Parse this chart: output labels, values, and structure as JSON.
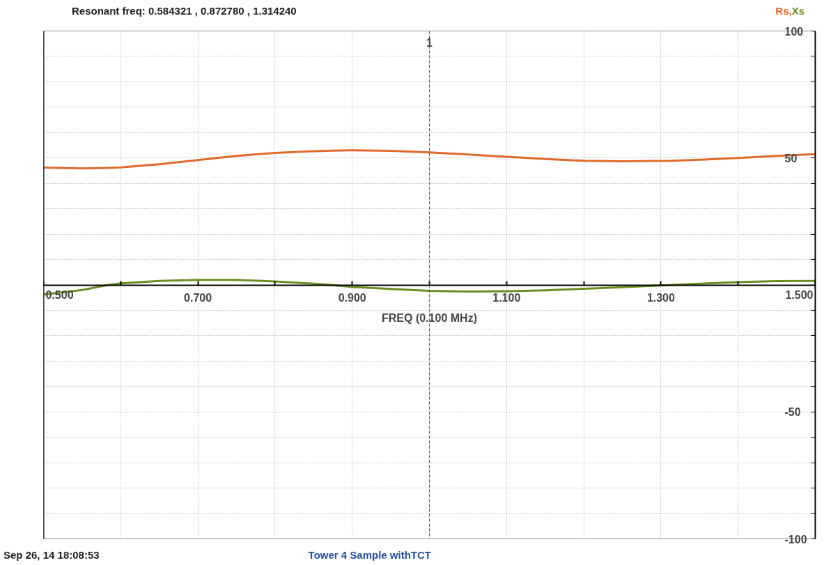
{
  "chart_data": {
    "type": "line",
    "title": "Resonant freq:  0.584321 , 0.872780 , 1.314240",
    "xlabel": "FREQ (0.100 MHz)",
    "x": [
      0.5,
      0.55,
      0.584,
      0.6,
      0.65,
      0.7,
      0.75,
      0.8,
      0.85,
      0.873,
      0.9,
      0.95,
      1.0,
      1.05,
      1.1,
      1.15,
      1.2,
      1.25,
      1.314,
      1.35,
      1.4,
      1.45,
      1.5
    ],
    "series": [
      {
        "name": "Rs,",
        "color": "#e06a2c",
        "values": [
          46.2,
          45.9,
          46.1,
          46.3,
          47.5,
          49.2,
          50.8,
          52.0,
          52.7,
          52.9,
          53.0,
          52.8,
          52.2,
          51.4,
          50.5,
          49.6,
          48.9,
          48.7,
          48.9,
          49.3,
          50.0,
          50.8,
          51.5
        ]
      },
      {
        "name": "Xs",
        "color": "#6b8e23",
        "values": [
          -3.8,
          -2.0,
          0,
          0.6,
          1.6,
          2.0,
          2.0,
          1.4,
          0.5,
          0,
          -0.8,
          -1.6,
          -2.3,
          -2.6,
          -2.5,
          -2.1,
          -1.5,
          -0.9,
          0,
          0.5,
          1.1,
          1.5,
          1.6
        ]
      }
    ],
    "xlim": [
      0.5,
      1.5
    ],
    "xticks": [
      {
        "value": 0.5,
        "label": "0.500"
      },
      {
        "value": 0.6,
        "label": null
      },
      {
        "value": 0.7,
        "label": "0.700"
      },
      {
        "value": 0.8,
        "label": null
      },
      {
        "value": 0.9,
        "label": "0.900"
      },
      {
        "value": 1.0,
        "label": null
      },
      {
        "value": 1.1,
        "label": "1.100"
      },
      {
        "value": 1.2,
        "label": null
      },
      {
        "value": 1.3,
        "label": "1.300"
      },
      {
        "value": 1.4,
        "label": null
      },
      {
        "value": 1.5,
        "label": "1.500"
      }
    ],
    "ylim": [
      -100,
      100
    ],
    "yticks": [
      {
        "value": -100,
        "label": "-100"
      },
      {
        "value": -90,
        "label": null
      },
      {
        "value": -80,
        "label": null
      },
      {
        "value": -70,
        "label": null
      },
      {
        "value": -60,
        "label": null
      },
      {
        "value": -50,
        "label": "-50"
      },
      {
        "value": -40,
        "label": null
      },
      {
        "value": -30,
        "label": null
      },
      {
        "value": -20,
        "label": null
      },
      {
        "value": -10,
        "label": null
      },
      {
        "value": 0,
        "label": null
      },
      {
        "value": 10,
        "label": null
      },
      {
        "value": 20,
        "label": null
      },
      {
        "value": 30,
        "label": null
      },
      {
        "value": 40,
        "label": null
      },
      {
        "value": 50,
        "label": "50"
      },
      {
        "value": 60,
        "label": null
      },
      {
        "value": 70,
        "label": null
      },
      {
        "value": 80,
        "label": null
      },
      {
        "value": 90,
        "label": null
      },
      {
        "value": 100,
        "label": "100"
      }
    ],
    "ref_lines": [
      {
        "axis": "x",
        "value": 1.0,
        "label": "1",
        "color": "#cc2222",
        "line_style": "dashed"
      }
    ],
    "grid": true,
    "legend": "top right",
    "marker": "none",
    "line_style": "solid",
    "annotations": [
      "Sep 26, 14  18:08:53",
      "Tower 4 Sample withTCT"
    ]
  }
}
